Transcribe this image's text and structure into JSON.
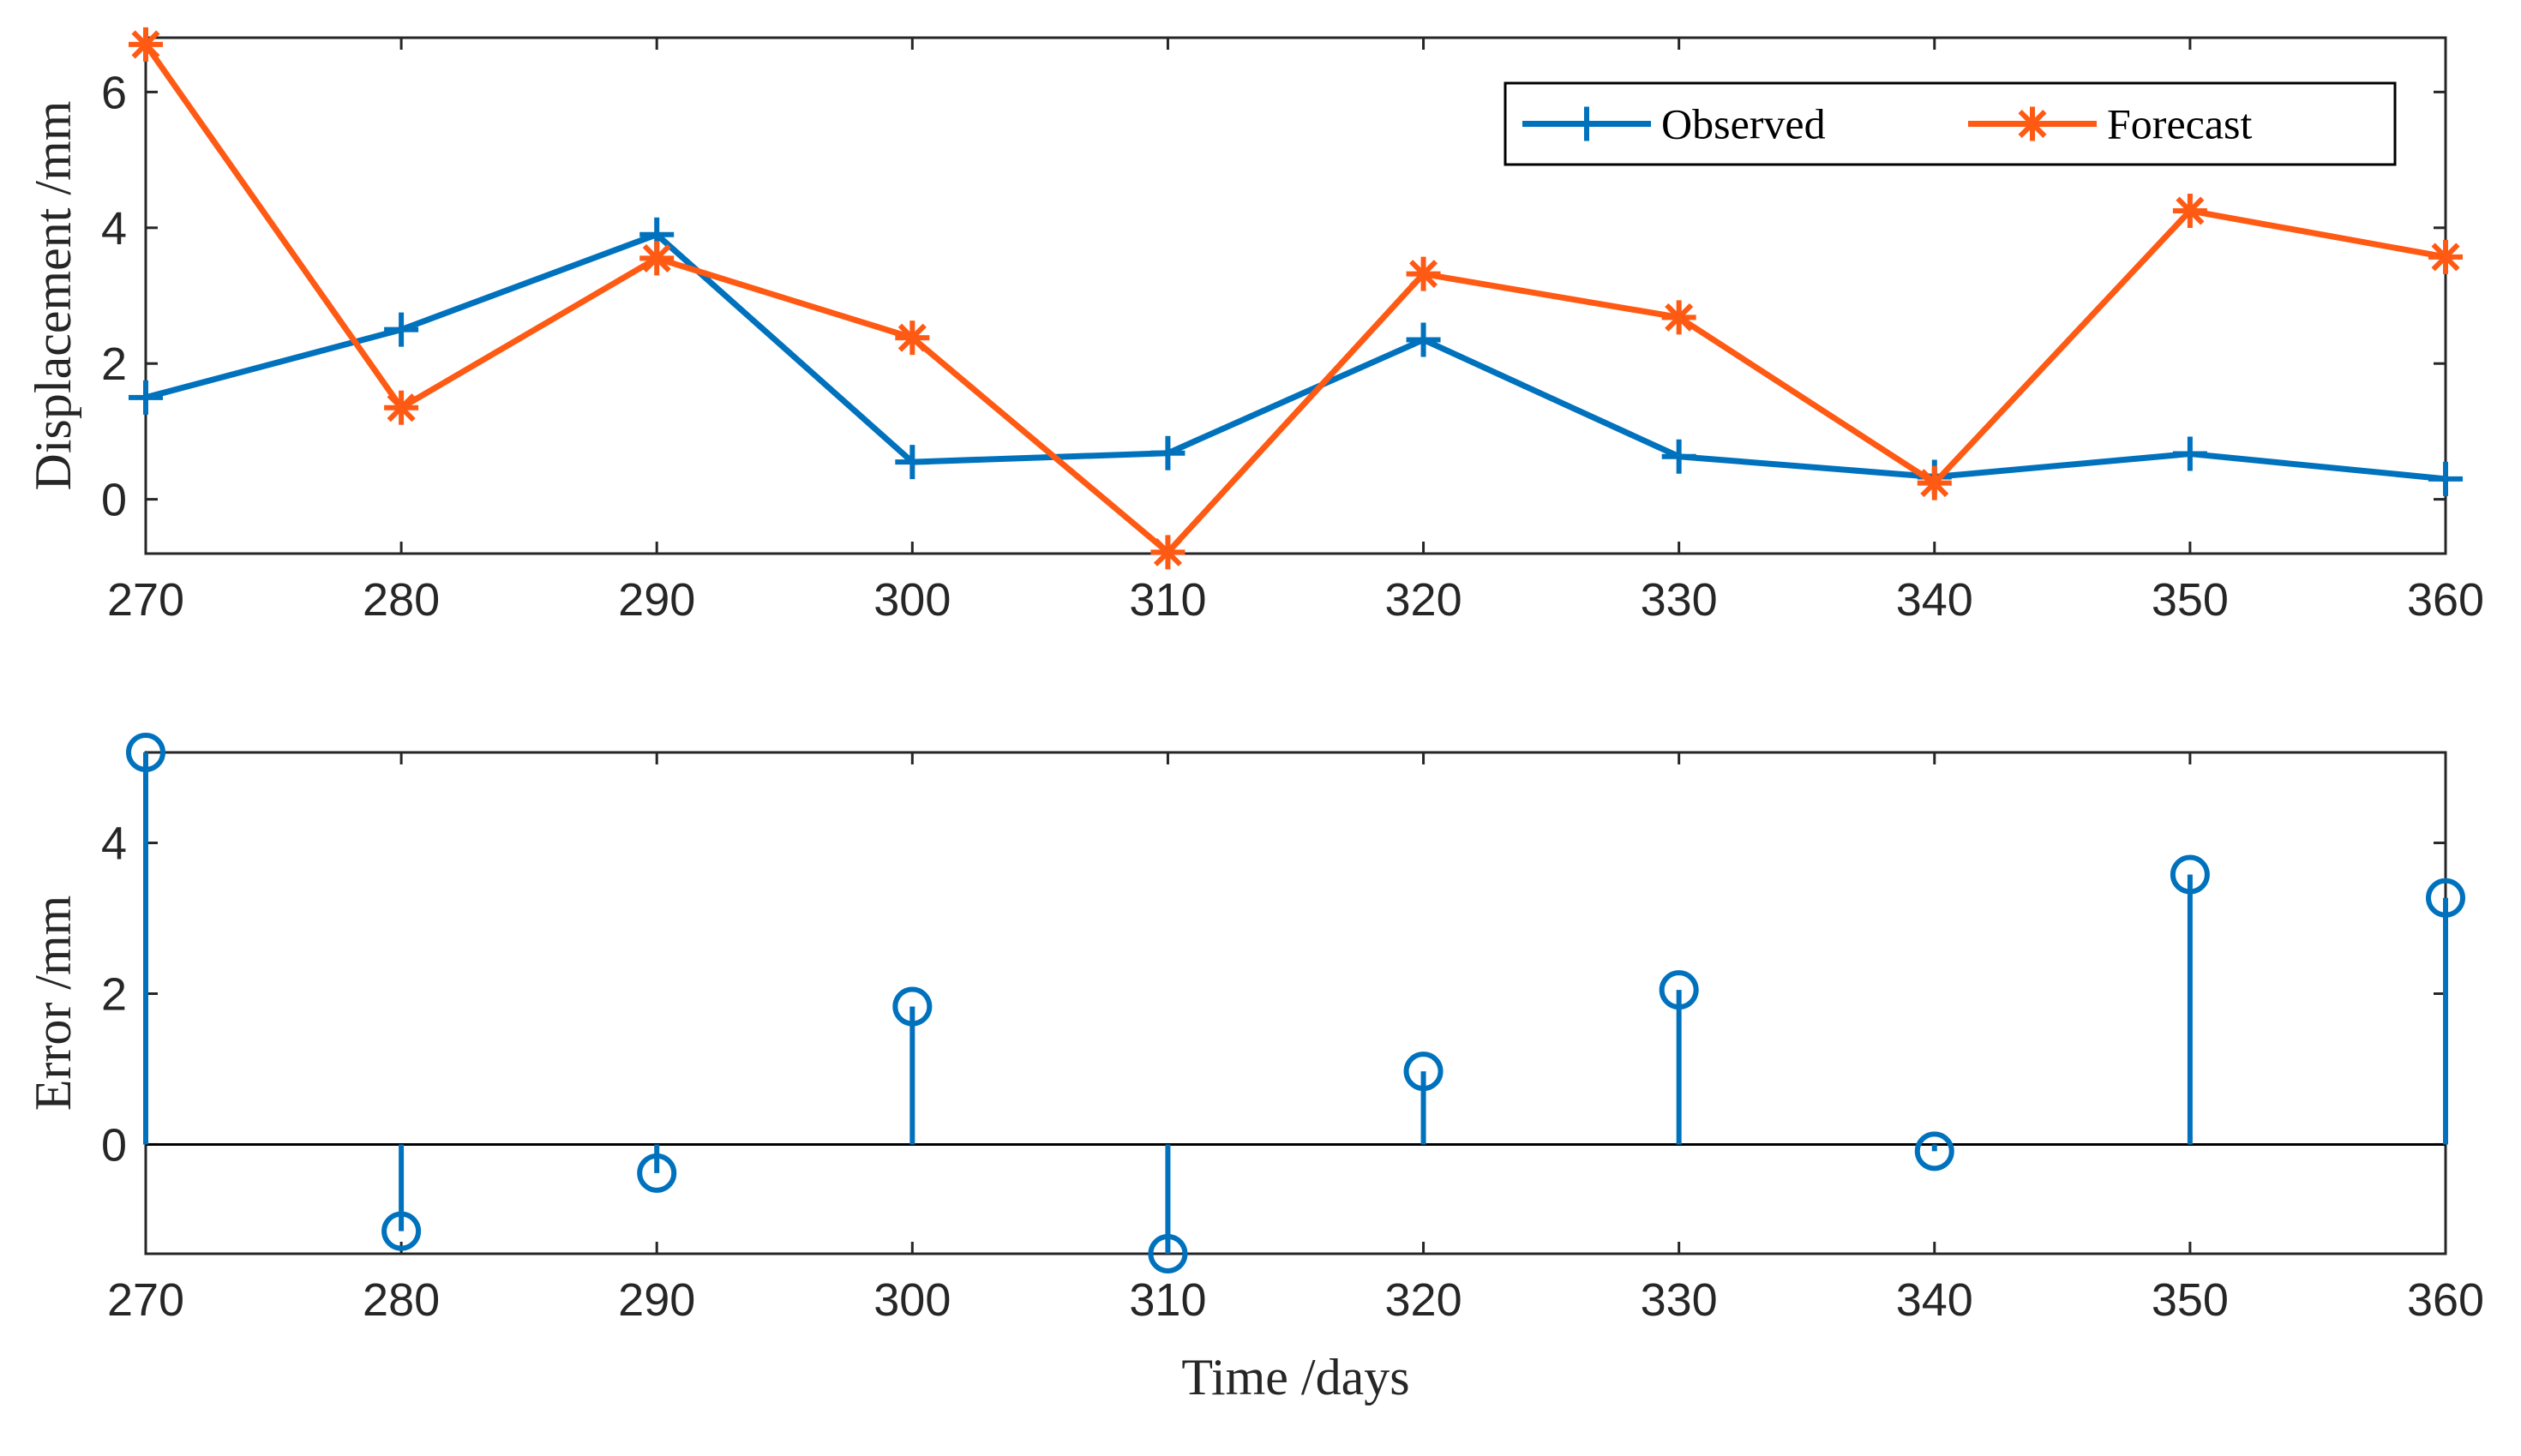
{
  "chart_data": [
    {
      "type": "line",
      "x": [
        270,
        280,
        290,
        300,
        310,
        320,
        330,
        340,
        350,
        360
      ],
      "series": [
        {
          "name": "Observed",
          "marker": "plus",
          "color": "#0072BD",
          "values": [
            1.5,
            2.5,
            3.9,
            0.55,
            0.68,
            2.35,
            0.63,
            0.33,
            0.67,
            0.3
          ]
        },
        {
          "name": "Forecast",
          "marker": "asterisk",
          "color": "#FF5A14",
          "values": [
            6.7,
            1.35,
            3.55,
            2.38,
            -0.78,
            3.32,
            2.68,
            0.24,
            4.25,
            3.57
          ]
        }
      ],
      "title": "",
      "xlabel": "",
      "ylabel": "Displacement /mm",
      "xlim": [
        270,
        360
      ],
      "ylim": [
        -0.8,
        6.8
      ],
      "xticks": [
        270,
        280,
        290,
        300,
        310,
        320,
        330,
        340,
        350,
        360
      ],
      "yticks": [
        0,
        2,
        4,
        6
      ],
      "legend": {
        "position": "top-right",
        "orientation": "horizontal"
      }
    },
    {
      "type": "stem",
      "x": [
        270,
        280,
        290,
        300,
        310,
        320,
        330,
        340,
        350,
        360
      ],
      "values": [
        5.2,
        -1.15,
        -0.38,
        1.83,
        -1.45,
        0.97,
        2.05,
        -0.09,
        3.58,
        3.27
      ],
      "color": "#0072BD",
      "marker": "circle",
      "baseline": 0,
      "title": "",
      "xlabel": "Time /days",
      "ylabel": "Error /mm",
      "xlim": [
        270,
        360
      ],
      "ylim": [
        -1.45,
        5.2
      ],
      "xticks": [
        270,
        280,
        290,
        300,
        310,
        320,
        330,
        340,
        350,
        360
      ],
      "yticks": [
        0,
        2,
        4
      ]
    }
  ]
}
